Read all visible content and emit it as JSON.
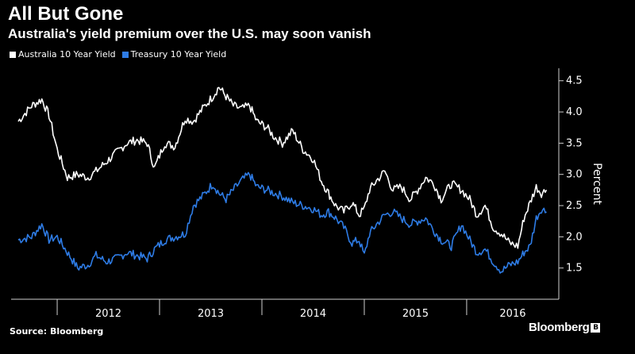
{
  "header": {
    "title": "All But Gone",
    "subtitle": "Australia's yield premium over the U.S. may soon vanish"
  },
  "legend": {
    "items": [
      {
        "label": "Australia 10 Year Yield",
        "color": "#ffffff"
      },
      {
        "label": "Treasury 10 Year Yield",
        "color": "#2e7ce6"
      }
    ]
  },
  "footer": {
    "source": "Source: Bloomberg",
    "brand": "Bloomberg",
    "brand_mark": "B"
  },
  "chart_data": {
    "type": "line",
    "title": "All But Gone",
    "subtitle": "Australia's yield premium over the U.S. may soon vanish",
    "ylabel": "Percent",
    "xlabel": "",
    "ylim": [
      1.0,
      4.7
    ],
    "yticks": [
      "1.5",
      "2.0",
      "2.5",
      "3.0",
      "3.5",
      "4.0",
      "4.5"
    ],
    "xticks": [
      "2012",
      "2013",
      "2014",
      "2015",
      "2016"
    ],
    "grid": false,
    "legend_position": "top-left",
    "series": [
      {
        "name": "Australia 10 Year Yield",
        "color": "#ffffff",
        "x": [
          2011.62,
          2011.75,
          2011.85,
          2011.92,
          2012.0,
          2012.1,
          2012.2,
          2012.3,
          2012.38,
          2012.48,
          2012.58,
          2012.68,
          2012.78,
          2012.88,
          2012.95,
          2013.05,
          2013.15,
          2013.25,
          2013.33,
          2013.42,
          2013.52,
          2013.58,
          2013.65,
          2013.72,
          2013.8,
          2013.88,
          2013.95,
          2014.05,
          2014.12,
          2014.2,
          2014.3,
          2014.4,
          2014.5,
          2014.58,
          2014.65,
          2014.72,
          2014.8,
          2014.88,
          2014.95,
          2015.0,
          2015.05,
          2015.12,
          2015.2,
          2015.28,
          2015.36,
          2015.45,
          2015.52,
          2015.6,
          2015.68,
          2015.75,
          2015.85,
          2015.95,
          2016.03,
          2016.1,
          2016.18,
          2016.26,
          2016.34,
          2016.42,
          2016.5,
          2016.56,
          2016.62,
          2016.68,
          2016.73,
          2016.78
        ],
        "values": [
          3.85,
          4.1,
          4.2,
          3.95,
          3.4,
          2.95,
          3.0,
          2.95,
          3.05,
          3.2,
          3.35,
          3.5,
          3.55,
          3.5,
          3.1,
          3.5,
          3.45,
          3.9,
          3.85,
          4.05,
          4.25,
          4.4,
          4.25,
          4.1,
          4.05,
          4.1,
          3.85,
          3.75,
          3.6,
          3.5,
          3.7,
          3.4,
          3.25,
          2.9,
          2.7,
          2.5,
          2.4,
          2.55,
          2.35,
          2.45,
          2.75,
          2.9,
          3.05,
          2.75,
          2.8,
          2.6,
          2.75,
          2.95,
          2.85,
          2.6,
          2.85,
          2.75,
          2.6,
          2.35,
          2.5,
          2.15,
          2.05,
          1.9,
          1.85,
          2.3,
          2.55,
          2.8,
          2.7,
          2.75
        ]
      },
      {
        "name": "Treasury 10 Year Yield",
        "color": "#2e7ce6",
        "x": [
          2011.62,
          2011.75,
          2011.85,
          2011.92,
          2012.0,
          2012.1,
          2012.2,
          2012.3,
          2012.38,
          2012.48,
          2012.58,
          2012.68,
          2012.78,
          2012.88,
          2012.95,
          2013.05,
          2013.15,
          2013.25,
          2013.33,
          2013.42,
          2013.52,
          2013.58,
          2013.65,
          2013.72,
          2013.8,
          2013.88,
          2013.95,
          2014.05,
          2014.12,
          2014.2,
          2014.3,
          2014.4,
          2014.5,
          2014.58,
          2014.65,
          2014.72,
          2014.8,
          2014.88,
          2014.95,
          2015.0,
          2015.05,
          2015.12,
          2015.2,
          2015.28,
          2015.36,
          2015.45,
          2015.52,
          2015.6,
          2015.68,
          2015.75,
          2015.85,
          2015.95,
          2016.03,
          2016.1,
          2016.18,
          2016.26,
          2016.34,
          2016.42,
          2016.5,
          2016.56,
          2016.62,
          2016.68,
          2016.73,
          2016.78
        ],
        "values": [
          1.95,
          2.0,
          2.2,
          1.95,
          2.0,
          1.75,
          1.5,
          1.55,
          1.7,
          1.6,
          1.65,
          1.75,
          1.7,
          1.65,
          1.8,
          1.95,
          2.0,
          2.05,
          2.5,
          2.65,
          2.85,
          2.7,
          2.6,
          2.75,
          2.9,
          3.0,
          2.8,
          2.75,
          2.7,
          2.65,
          2.55,
          2.5,
          2.45,
          2.35,
          2.4,
          2.3,
          2.15,
          1.9,
          1.95,
          1.7,
          2.05,
          2.2,
          2.35,
          2.4,
          2.3,
          2.2,
          2.25,
          2.3,
          2.1,
          1.95,
          1.85,
          2.2,
          1.95,
          1.75,
          1.8,
          1.6,
          1.45,
          1.55,
          1.6,
          1.75,
          1.85,
          2.3,
          2.45,
          2.4
        ]
      }
    ]
  }
}
